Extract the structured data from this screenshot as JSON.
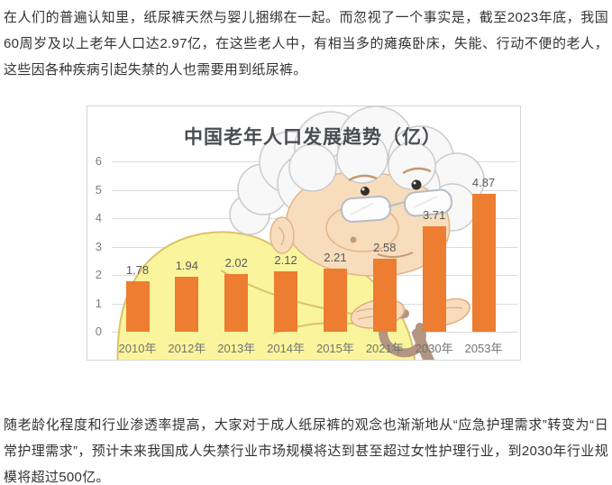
{
  "article": {
    "paragraph_top": "在人们的普遍认知里，纸尿裤天然与婴儿捆绑在一起。而忽视了一个事实是，截至2023年底，我国60周岁及以上老年人口达2.97亿，在这些老人中，有相当多的瘫痪卧床，失能、行动不便的老人，这些因各种疾病引起失禁的人也需要用到纸尿裤。",
    "paragraph_bottom": "随老龄化程度和行业渗透率提高，大家对于成人纸尿裤的观念也渐渐地从“应急护理需求”转变为“日常护理需求”，预计未来我国成人失禁行业市场规模将达到甚至超过女性护理行业，到2030年行业规模将超过500亿。"
  },
  "chart_data": {
    "type": "bar",
    "title": "中国老年人口发展趋势（亿）",
    "categories": [
      "2010年",
      "2012年",
      "2013年",
      "2014年",
      "2015年",
      "2021年",
      "2030年",
      "2053年"
    ],
    "values": [
      1.78,
      1.94,
      2.02,
      2.12,
      2.21,
      2.58,
      3.71,
      4.87
    ],
    "xlabel": "",
    "ylabel": "",
    "ylim": [
      0,
      6
    ],
    "yticks": [
      0,
      1,
      2,
      3,
      4,
      5,
      6
    ],
    "grid": true,
    "legend": "none",
    "bar_color": "#ed7d31",
    "value_label_color": "#595959",
    "axis_label_color": "#7f7f7f",
    "background_illustration": "cartoon-grandma-with-cane"
  }
}
